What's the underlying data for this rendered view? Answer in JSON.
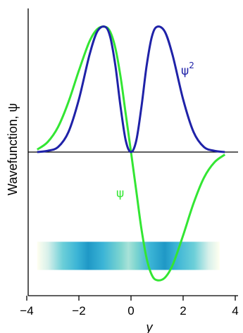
{
  "chart_data": {
    "type": "line",
    "xlabel": "y",
    "ylabel": "Wavefunction, ψ",
    "xlim": [
      -4,
      4
    ],
    "ylim": [
      -1.05,
      1.2
    ],
    "x_ticks": [
      "−4",
      "−2",
      "0",
      "2",
      "4"
    ],
    "x_tick_values": [
      -4,
      -2,
      0,
      2,
      4
    ],
    "grid": false,
    "baseline_y": 0,
    "series": [
      {
        "name": "ψ",
        "label": "ψ",
        "color": "#33e633",
        "x": [
          -3.6,
          -3.2,
          -2.8,
          -2.4,
          -2.0,
          -1.6,
          -1.3,
          -1.0,
          -0.8,
          -0.6,
          -0.4,
          -0.2,
          0.0,
          0.2,
          0.4,
          0.6,
          0.8,
          1.0,
          1.3,
          1.6,
          2.0,
          2.4,
          2.8,
          3.2,
          3.6
        ],
        "y": [
          0.02,
          0.08,
          0.2,
          0.4,
          0.65,
          0.88,
          0.98,
          1.0,
          0.96,
          0.83,
          0.6,
          0.3,
          0.0,
          -0.3,
          -0.6,
          -0.83,
          -0.96,
          -1.0,
          -0.98,
          -0.88,
          -0.65,
          -0.4,
          -0.2,
          -0.08,
          -0.02
        ]
      },
      {
        "name": "ψ²",
        "label": "ψ",
        "label_sup": "2",
        "color": "#1f22a8",
        "x": [
          -3.6,
          -3.2,
          -2.8,
          -2.4,
          -2.0,
          -1.6,
          -1.3,
          -1.0,
          -0.8,
          -0.6,
          -0.4,
          -0.2,
          0.0,
          0.2,
          0.4,
          0.6,
          0.8,
          1.0,
          1.3,
          1.6,
          2.0,
          2.4,
          2.8,
          3.2,
          3.6
        ],
        "y": [
          0.0,
          0.01,
          0.04,
          0.16,
          0.42,
          0.77,
          0.96,
          1.0,
          0.92,
          0.69,
          0.36,
          0.09,
          0.0,
          0.09,
          0.36,
          0.69,
          0.92,
          1.0,
          0.96,
          0.77,
          0.42,
          0.16,
          0.04,
          0.01,
          0.0
        ]
      }
    ],
    "density_band": {
      "x_range": [
        -3.6,
        3.4
      ],
      "y_range": [
        -0.7,
        -0.92
      ],
      "colors": [
        "#fffff0",
        "#7fd6d0",
        "#1f98c6",
        "#4cc2d6",
        "#fffff0"
      ]
    }
  }
}
